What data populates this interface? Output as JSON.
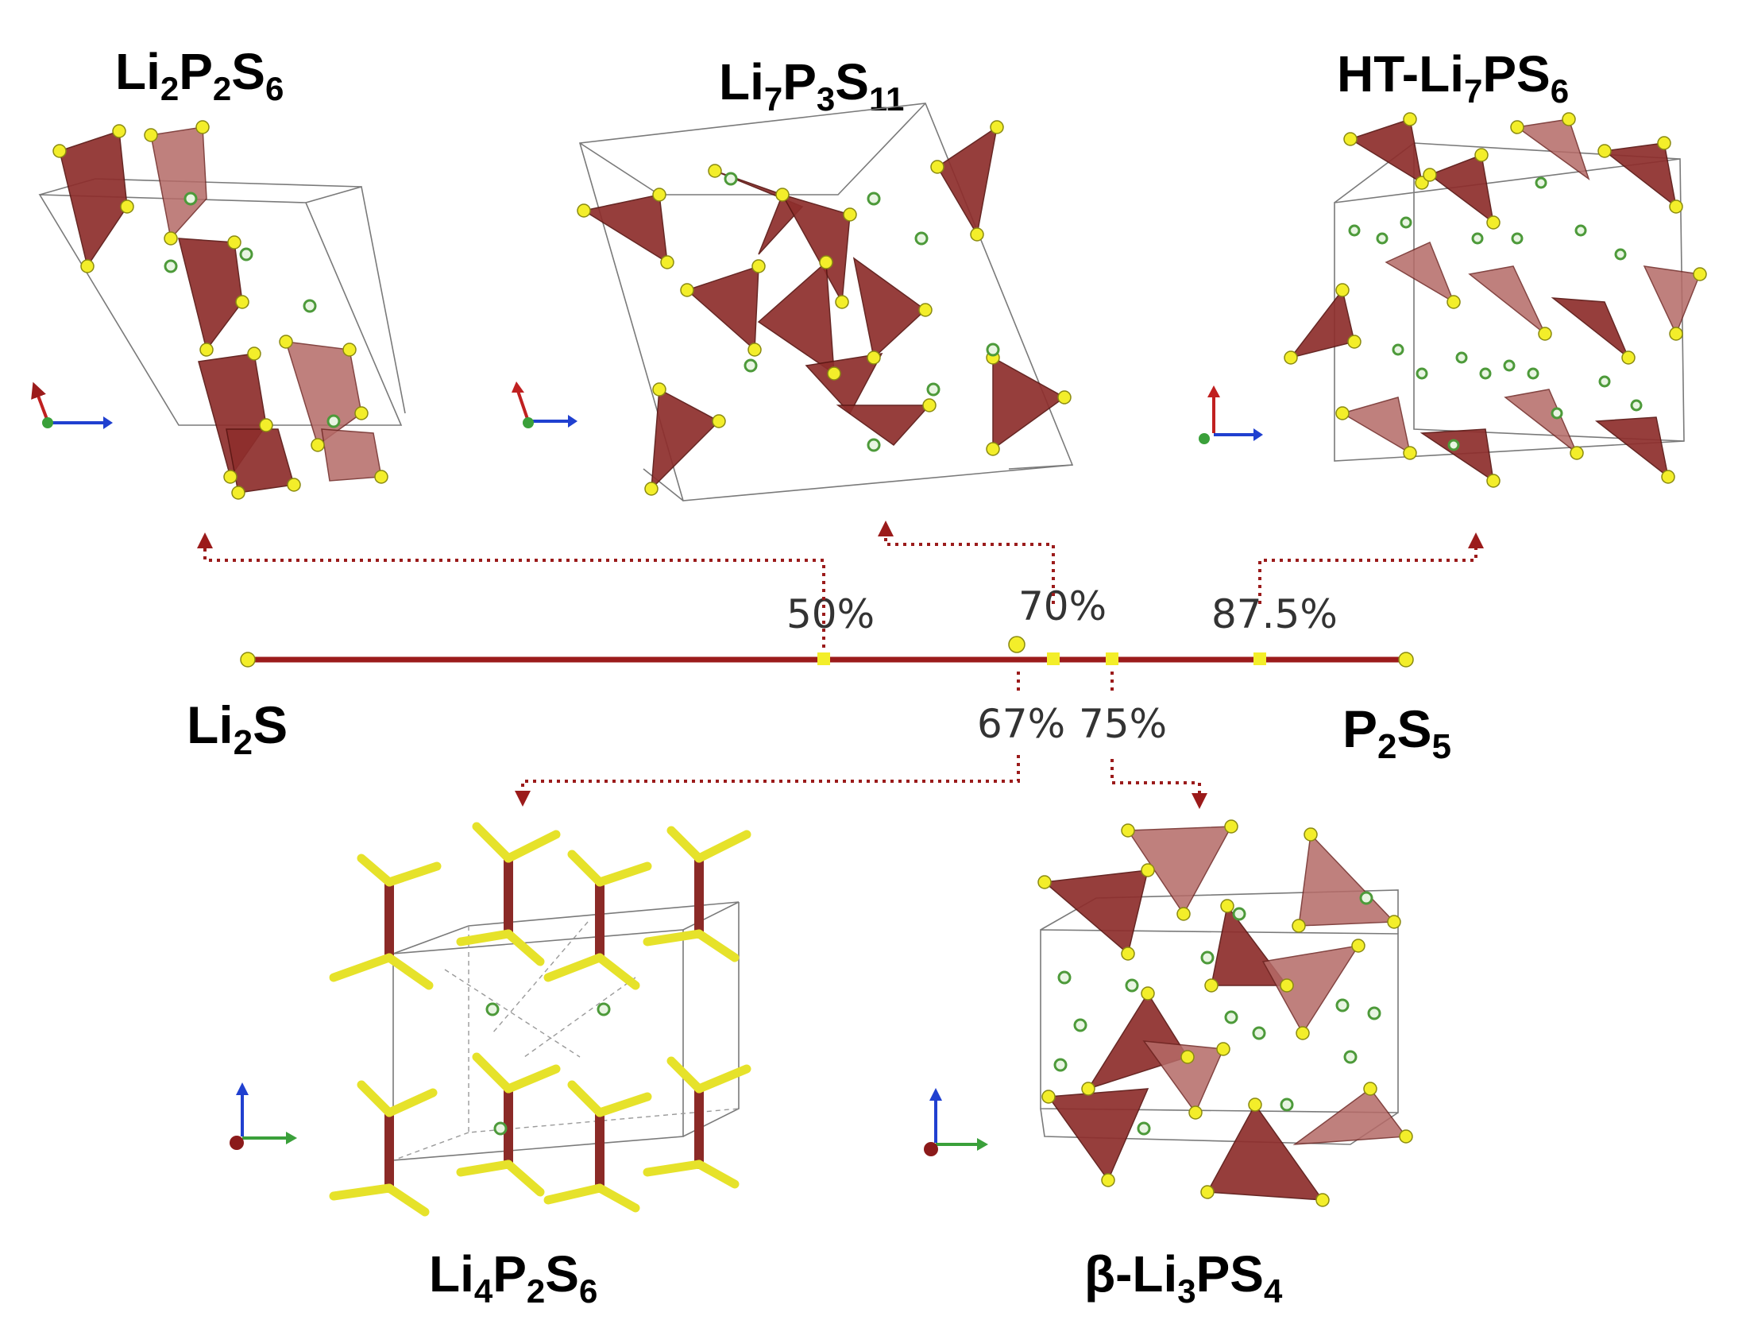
{
  "labels": {
    "left_end": {
      "main": "Li",
      "sub": "2",
      "tail": "S"
    },
    "right_end": {
      "p1": "P",
      "s1": "2",
      "p2": "S",
      "s2": "5"
    },
    "top_left": {
      "a": "Li",
      "s1": "2",
      "b": "P",
      "s2": "2",
      "c": "S",
      "s3": "6"
    },
    "top_mid": {
      "a": "Li",
      "s1": "7",
      "b": "P",
      "s2": "3",
      "c": "S",
      "s3": "11"
    },
    "top_right": {
      "a": "HT-Li",
      "s1": "7",
      "b": "PS",
      "s2": "6"
    },
    "bot_left": {
      "a": "Li",
      "s1": "4",
      "b": "P",
      "s2": "2",
      "c": "S",
      "s3": "6"
    },
    "bot_right": {
      "a": "β-Li",
      "s1": "3",
      "b": "PS",
      "s2": "4"
    }
  },
  "percent_labels": {
    "p50": "50%",
    "p70": "70%",
    "p875": "87.5%",
    "p67": "67%",
    "p75": "75%"
  },
  "colors": {
    "axis_line": "#9b1b1b",
    "marker": "#f3ee2a",
    "tetrahedron": "#8e2e2c",
    "sulfur": "#f3ee2a",
    "lithium": "#4d9a3a"
  },
  "icons": {
    "crystal_structure": "polyhedra-icon",
    "axis_triad": "axis-triad-icon"
  }
}
